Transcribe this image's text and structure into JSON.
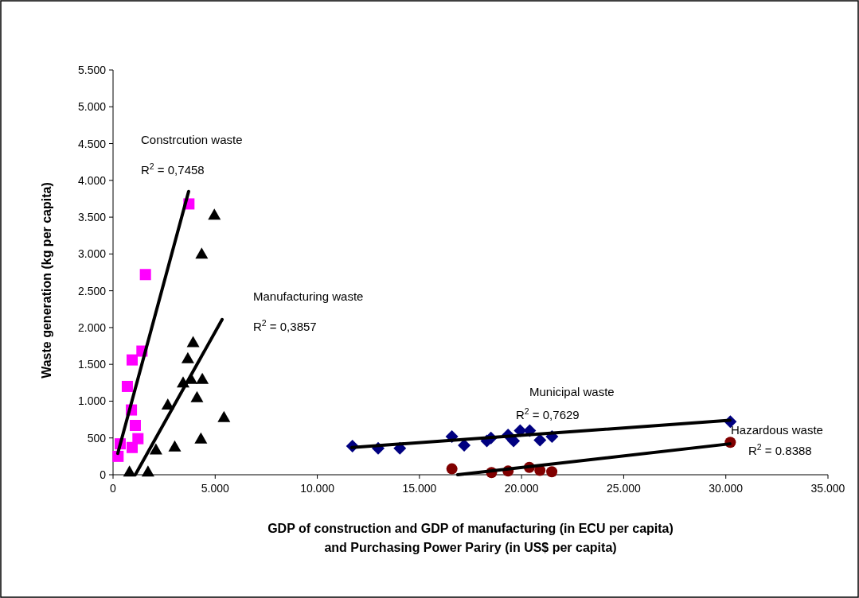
{
  "chart_data": {
    "type": "scatter",
    "xlabel": "GDP of construction and GDP of manufacturing (in ECU per capita)\nand Purchasing Power Pariry (in US$ per capita)",
    "ylabel": "Waste generation (kg per capita)",
    "xlim": [
      0,
      35000
    ],
    "ylim": [
      0,
      5500
    ],
    "xticks": [
      0,
      {
        "value": 5000,
        "label": "5.000"
      },
      {
        "value": 10000,
        "label": "10.000"
      },
      {
        "value": 15000,
        "label": "15.000"
      },
      {
        "value": 20000,
        "label": "20.000"
      },
      {
        "value": 25000,
        "label": "25.000"
      },
      {
        "value": 30000,
        "label": "30.000"
      },
      {
        "value": 35000,
        "label": "35.000"
      }
    ],
    "yticks": [
      0,
      500,
      {
        "value": 1000,
        "label": "1.000"
      },
      {
        "value": 1500,
        "label": "1.500"
      },
      {
        "value": 2000,
        "label": "2.000"
      },
      {
        "value": 2500,
        "label": "2.500"
      },
      {
        "value": 3000,
        "label": "3.000"
      },
      {
        "value": 3500,
        "label": "3.500"
      },
      {
        "value": 4000,
        "label": "4.000"
      },
      {
        "value": 4500,
        "label": "4.500"
      },
      {
        "value": 5000,
        "label": "5.000"
      },
      {
        "value": 5500,
        "label": "5.500"
      }
    ],
    "grid": false,
    "series": [
      {
        "marker": "square",
        "color": "#ff00ff",
        "x": [
          246,
          350,
          935,
          1220,
          1090,
          900,
          700,
          935,
          1415,
          1585,
          3715
        ],
        "values": [
          250,
          420,
          370,
          490,
          670,
          880,
          1200,
          1560,
          1680,
          2720,
          3680
        ]
      },
      {
        "marker": "triangle",
        "color": "#000000",
        "x": [
          805,
          1710,
          2100,
          3020,
          2680,
          4300,
          5430,
          4110,
          3430,
          3820,
          4370,
          3660,
          3920,
          4340,
          4960
        ],
        "values": [
          40,
          40,
          340,
          380,
          950,
          490,
          780,
          1050,
          1250,
          1300,
          1300,
          1580,
          1800,
          3000,
          3530
        ]
      },
      {
        "marker": "diamond",
        "color": "#000080",
        "x": [
          11720,
          12980,
          14040,
          16590,
          17190,
          18300,
          18500,
          19340,
          19610,
          19930,
          20400,
          20900,
          21490,
          30220
        ],
        "values": [
          390,
          360,
          360,
          520,
          400,
          460,
          500,
          540,
          460,
          600,
          600,
          470,
          520,
          720
        ]
      },
      {
        "marker": "circle",
        "color": "#800000",
        "x": [
          16590,
          18530,
          19340,
          20380,
          20900,
          21480,
          30220
        ],
        "values": [
          80,
          30,
          50,
          100,
          60,
          40,
          440
        ]
      },
      {
        "type": "line",
        "marker": "none",
        "color": "#000000",
        "x": [
          230,
          3700
        ],
        "values": [
          290,
          3850
        ]
      },
      {
        "type": "line",
        "marker": "none",
        "color": "#000000",
        "x": [
          1090,
          5340
        ],
        "values": [
          0,
          2110
        ]
      },
      {
        "type": "line",
        "marker": "none",
        "color": "#000000",
        "x": [
          11690,
          30200
        ],
        "values": [
          370,
          740
        ]
      },
      {
        "type": "line",
        "marker": "none",
        "color": "#000000",
        "x": [
          16870,
          30200
        ],
        "values": [
          0,
          420
        ]
      }
    ],
    "annotations": [
      "Constrcution waste",
      "R$^{2}$ = 0,7458",
      "Manufacturing waste",
      "R$^{2}$ = 0,3857",
      "Municipal waste",
      "R$^{2}$ = 0,7629",
      "Hazardous waste",
      "R$^{2}$ = 0.8388"
    ]
  }
}
